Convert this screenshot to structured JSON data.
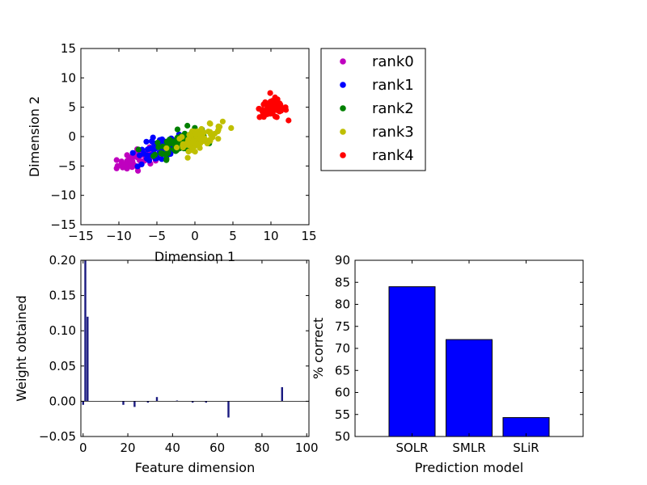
{
  "chart_data": [
    {
      "type": "scatter",
      "xlabel": "Dimension 1",
      "ylabel": "Dimension 2",
      "xlim": [
        -15,
        15
      ],
      "ylim": [
        -15,
        15
      ],
      "xticks": [
        "−15",
        "−10",
        "−5",
        "0",
        "5",
        "10",
        "15"
      ],
      "yticks": [
        "15",
        "10",
        "5",
        "0",
        "−5",
        "−10",
        "−15"
      ],
      "legend_position": "outside-right",
      "series": [
        {
          "name": "rank0",
          "color": "#bf00bf",
          "center": [
            -7,
            -3.5
          ],
          "spread": [
            1.6,
            0.8
          ],
          "n": 60
        },
        {
          "name": "rank1",
          "color": "#0000ff",
          "center": [
            -4.5,
            -2.2
          ],
          "spread": [
            1.6,
            1.0
          ],
          "n": 80
        },
        {
          "name": "rank2",
          "color": "#008000",
          "center": [
            -2.2,
            -1.0
          ],
          "spread": [
            1.5,
            1.0
          ],
          "n": 80
        },
        {
          "name": "rank3",
          "color": "#bfbf00",
          "center": [
            0.6,
            -0.2
          ],
          "spread": [
            1.5,
            0.8
          ],
          "n": 80
        },
        {
          "name": "rank4",
          "color": "#ff0000",
          "center": [
            10.3,
            4.8
          ],
          "spread": [
            0.9,
            0.8
          ],
          "n": 70
        }
      ]
    },
    {
      "type": "bar",
      "xlabel": "Feature dimension",
      "ylabel": "Weight obtained",
      "xlim": [
        -1,
        101
      ],
      "ylim": [
        -0.05,
        0.2
      ],
      "xticks": [
        "0",
        "20",
        "40",
        "60",
        "80",
        "100"
      ],
      "yticks": [
        "0.20",
        "0.15",
        "0.10",
        "0.05",
        "0.00",
        "−0.05"
      ],
      "color": "#1a1a80",
      "bars": [
        {
          "x": 0,
          "y": -0.005
        },
        {
          "x": 1,
          "y": 0.2
        },
        {
          "x": 2,
          "y": 0.12
        },
        {
          "x": 18,
          "y": -0.005
        },
        {
          "x": 23,
          "y": -0.008
        },
        {
          "x": 29,
          "y": -0.002
        },
        {
          "x": 33,
          "y": 0.006
        },
        {
          "x": 42,
          "y": 0.001
        },
        {
          "x": 49,
          "y": -0.002
        },
        {
          "x": 55,
          "y": -0.002
        },
        {
          "x": 65,
          "y": -0.023
        },
        {
          "x": 89,
          "y": 0.02
        }
      ]
    },
    {
      "type": "bar",
      "xlabel": "Prediction model",
      "ylabel": "% correct",
      "categories": [
        "SOLR",
        "SMLR",
        "SLiR"
      ],
      "values": [
        84,
        72,
        54.3
      ],
      "ylim": [
        50,
        90
      ],
      "yticks": [
        "90",
        "85",
        "80",
        "75",
        "70",
        "65",
        "60",
        "55",
        "50"
      ],
      "color": "#0000ff"
    }
  ]
}
